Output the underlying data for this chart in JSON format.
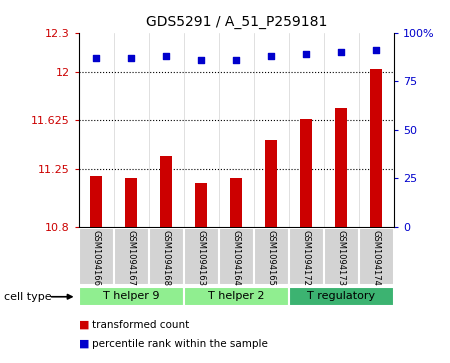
{
  "title": "GDS5291 / A_51_P259181",
  "samples": [
    "GSM1094166",
    "GSM1094167",
    "GSM1094168",
    "GSM1094163",
    "GSM1094164",
    "GSM1094165",
    "GSM1094172",
    "GSM1094173",
    "GSM1094174"
  ],
  "transformed_count": [
    11.19,
    11.18,
    11.35,
    11.14,
    11.18,
    11.47,
    11.63,
    11.72,
    12.02
  ],
  "percentile_rank": [
    87,
    87,
    88,
    86,
    86,
    88,
    89,
    90,
    91
  ],
  "ylim_left": [
    10.8,
    12.3
  ],
  "yticks_left": [
    10.8,
    11.25,
    11.625,
    12.0,
    12.3
  ],
  "ytick_labels_left": [
    "10.8",
    "11.25",
    "11.625",
    "12",
    "12.3"
  ],
  "ylim_right": [
    0,
    100
  ],
  "yticks_right": [
    0,
    25,
    50,
    75,
    100
  ],
  "ytick_labels_right": [
    "0",
    "25",
    "50",
    "75",
    "100%"
  ],
  "cell_groups": [
    {
      "label": "T helper 9",
      "indices": [
        0,
        1,
        2
      ],
      "color": "#90EE90"
    },
    {
      "label": "T helper 2",
      "indices": [
        3,
        4,
        5
      ],
      "color": "#90EE90"
    },
    {
      "label": "T regulatory",
      "indices": [
        6,
        7,
        8
      ],
      "color": "#3CB371"
    }
  ],
  "bar_color": "#cc0000",
  "dot_color": "#0000cc",
  "bar_width": 0.35,
  "background_color": "#ffffff",
  "plot_bg_color": "#ffffff",
  "sample_box_color": "#d3d3d3",
  "cell_type_label": "cell type",
  "legend_items": [
    {
      "label": "transformed count",
      "color": "#cc0000"
    },
    {
      "label": "percentile rank within the sample",
      "color": "#0000cc"
    }
  ]
}
